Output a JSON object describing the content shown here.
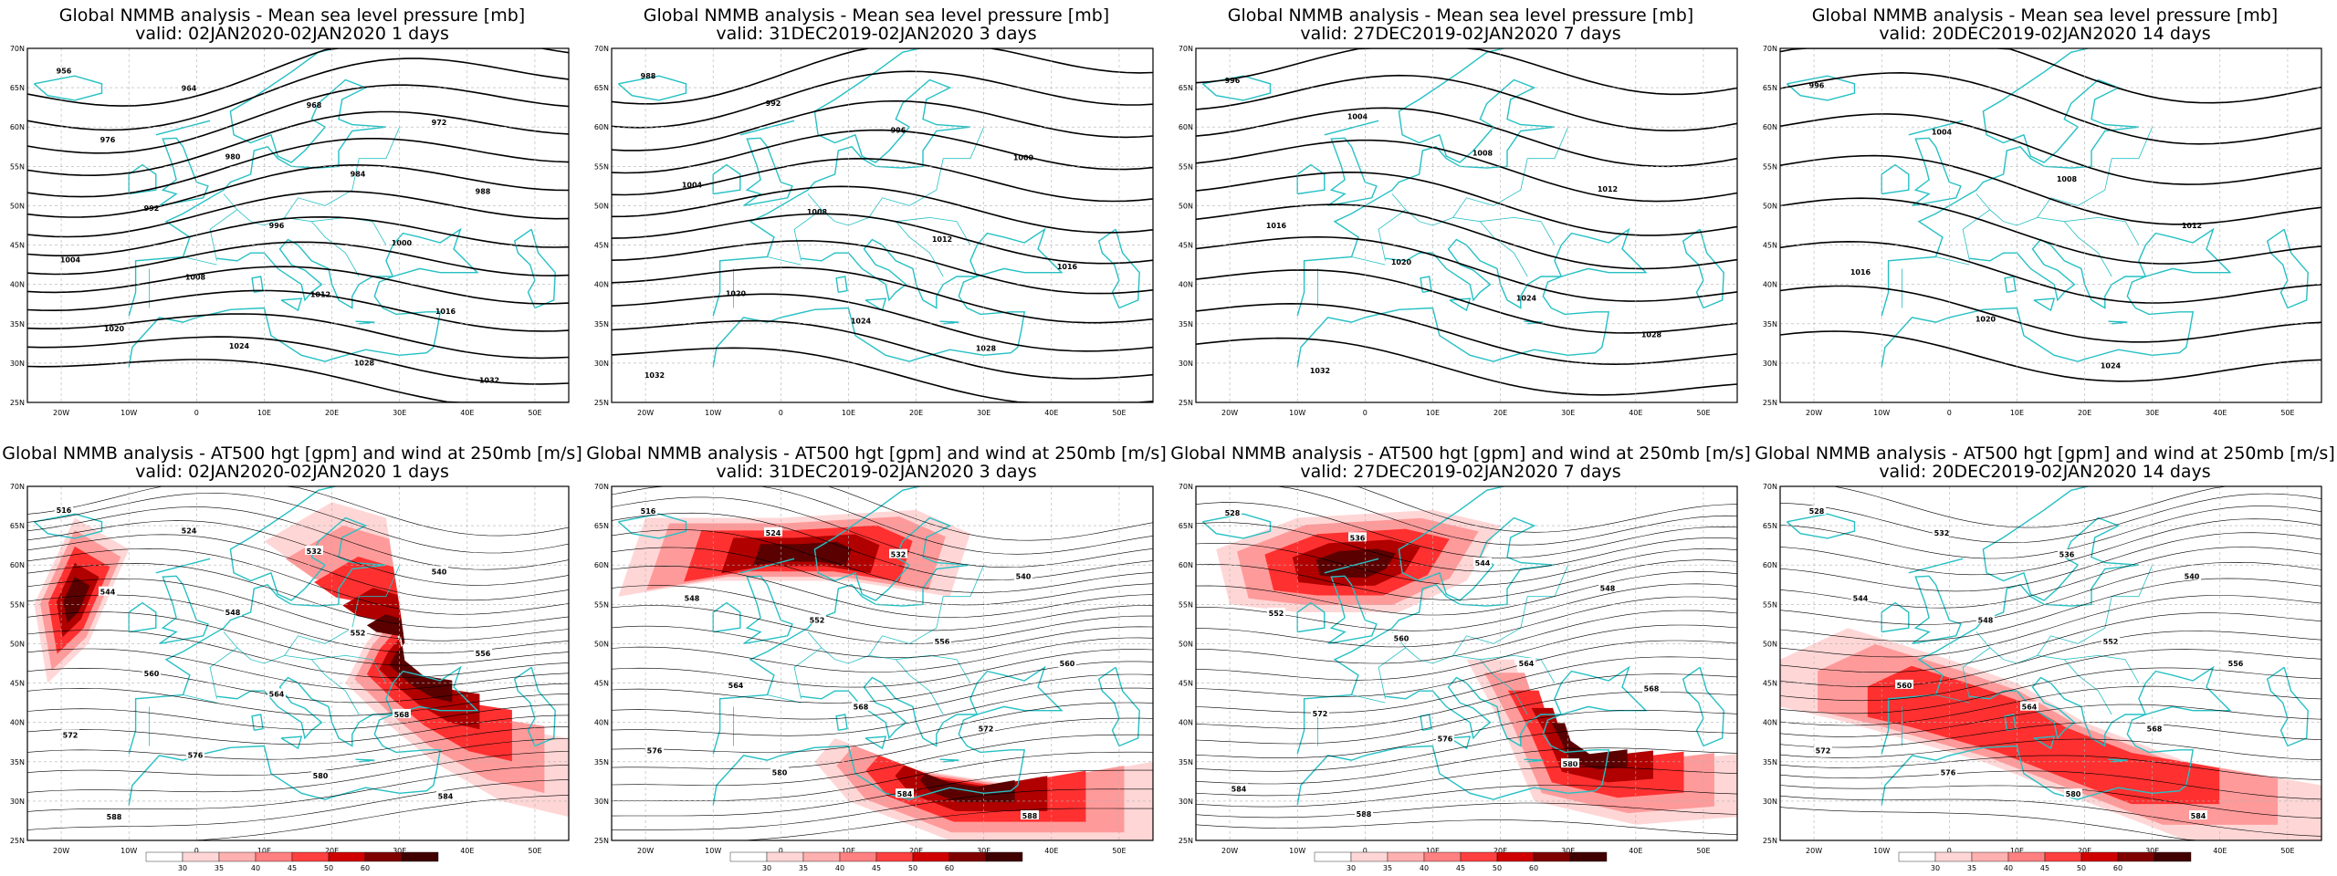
{
  "lon_ticks": [
    "20W",
    "10W",
    "0",
    "10E",
    "20E",
    "30E",
    "40E",
    "50E"
  ],
  "lat_ticks": [
    "70N",
    "65N",
    "60N",
    "55N",
    "50N",
    "45N",
    "40N",
    "35N",
    "30N",
    "25N"
  ],
  "colorbar_labels": [
    "30",
    "35",
    "40",
    "45",
    "50",
    "60"
  ],
  "colors": {
    "coast": "#25c0c4",
    "contour": "#000000",
    "grid": "#b0b0b0"
  },
  "mslp_panels": [
    {
      "title": "Global NMMB analysis - Mean sea level pressure [mb]",
      "valid": "valid: 02JAN2020-02JAN2020   1 days",
      "labels": [
        "956",
        "964",
        "968",
        "972",
        "976",
        "980",
        "984",
        "988",
        "992",
        "996",
        "1000",
        "1004",
        "1008",
        "1012",
        "1016",
        "1020",
        "1024",
        "1028",
        "1032"
      ]
    },
    {
      "title": "Global NMMB analysis - Mean sea level pressure [mb]",
      "valid": "valid: 31DEC2019-02JAN2020   3 days",
      "labels": [
        "988",
        "992",
        "996",
        "1000",
        "1004",
        "1008",
        "1012",
        "1016",
        "1020",
        "1024",
        "1028",
        "1032"
      ]
    },
    {
      "title": "Global NMMB analysis - Mean sea level pressure [mb]",
      "valid": "valid: 27DEC2019-02JAN2020   7 days",
      "labels": [
        "996",
        "1004",
        "1008",
        "1012",
        "1016",
        "1020",
        "1024",
        "1028",
        "1032"
      ]
    },
    {
      "title": "Global NMMB analysis - Mean sea level pressure [mb]",
      "valid": "valid: 20DEC2019-02JAN2020   14 days",
      "labels": [
        "996",
        "1004",
        "1008",
        "1012",
        "1016",
        "1020",
        "1024"
      ]
    }
  ],
  "z500_panels": [
    {
      "title": "Global NMMB analysis - AT500 hgt [gpm] and wind at 250mb [m/s]",
      "valid": "valid: 02JAN2020-02JAN2020   1 days",
      "labels": [
        "516",
        "524",
        "532",
        "540",
        "544",
        "548",
        "552",
        "556",
        "560",
        "564",
        "568",
        "572",
        "576",
        "580",
        "584",
        "588"
      ]
    },
    {
      "title": "Global NMMB analysis - AT500 hgt [gpm] and wind at 250mb [m/s]",
      "valid": "valid: 31DEC2019-02JAN2020   3 days",
      "labels": [
        "516",
        "524",
        "532",
        "540",
        "548",
        "552",
        "556",
        "560",
        "564",
        "568",
        "572",
        "576",
        "580",
        "584",
        "588"
      ]
    },
    {
      "title": "Global NMMB analysis - AT500 hgt [gpm] and wind at 250mb [m/s]",
      "valid": "valid: 27DEC2019-02JAN2020   7 days",
      "labels": [
        "528",
        "536",
        "544",
        "548",
        "552",
        "560",
        "564",
        "568",
        "572",
        "576",
        "580",
        "584",
        "588"
      ]
    },
    {
      "title": "Global NMMB analysis - AT500 hgt [gpm] and wind at 250mb [m/s]",
      "valid": "valid: 20DEC2019-02JAN2020   14 days",
      "labels": [
        "528",
        "532",
        "536",
        "540",
        "544",
        "548",
        "552",
        "556",
        "560",
        "564",
        "568",
        "572",
        "576",
        "580",
        "584"
      ]
    }
  ]
}
